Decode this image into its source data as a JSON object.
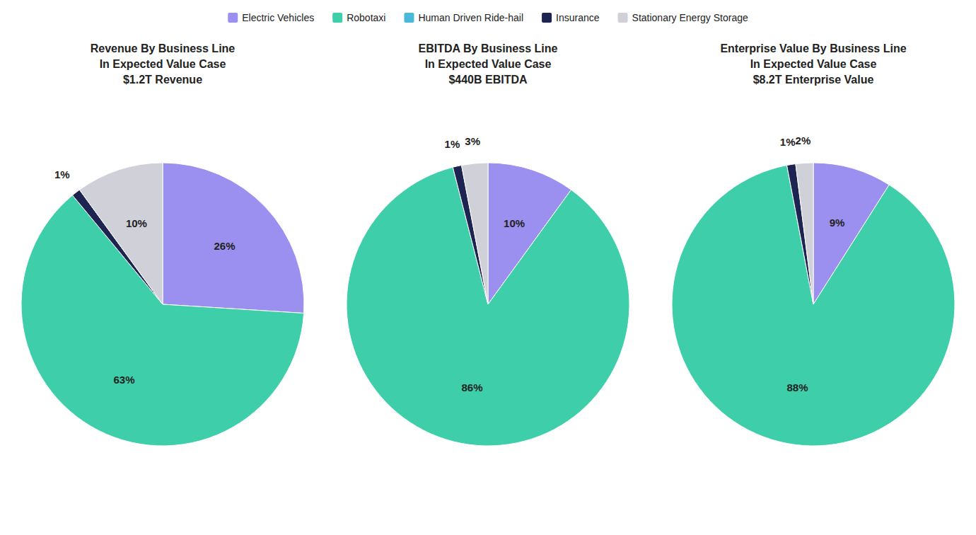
{
  "chart_data": [
    {
      "type": "pie",
      "title": "Revenue By Business Line\nIn Expected Value Case\n$1.2T Revenue",
      "categories": [
        "Electric Vehicles",
        "Robotaxi",
        "Human Driven Ride-hail",
        "Insurance",
        "Stationary Energy Storage"
      ],
      "values": [
        26,
        63,
        0,
        1,
        10
      ],
      "value_labels": [
        "26%",
        "63%",
        null,
        "1%",
        "10%"
      ],
      "colors": [
        "#9b8fef",
        "#3ecfaa",
        "#4ab8d8",
        "#1e2452",
        "#d0d0d8"
      ],
      "data_labels": true,
      "legend": "top"
    },
    {
      "type": "pie",
      "title": "EBITDA By Business Line\nIn Expected Value Case\n$440B EBITDA",
      "categories": [
        "Electric Vehicles",
        "Robotaxi",
        "Human Driven Ride-hail",
        "Insurance",
        "Stationary Energy Storage"
      ],
      "values": [
        10,
        86,
        0,
        1,
        3
      ],
      "value_labels": [
        "10%",
        "86%",
        null,
        "1%",
        "3%"
      ],
      "colors": [
        "#9b8fef",
        "#3ecfaa",
        "#4ab8d8",
        "#1e2452",
        "#d0d0d8"
      ],
      "data_labels": true
    },
    {
      "type": "pie",
      "title": "Enterprise Value By Business Line\nIn Expected Value Case\n$8.2T Enterprise Value",
      "categories": [
        "Electric Vehicles",
        "Robotaxi",
        "Human Driven Ride-hail",
        "Insurance",
        "Stationary Energy Storage"
      ],
      "values": [
        9,
        88,
        0,
        1,
        2
      ],
      "value_labels": [
        "9%",
        "88%",
        null,
        "1%",
        "2%"
      ],
      "colors": [
        "#9b8fef",
        "#3ecfaa",
        "#4ab8d8",
        "#1e2452",
        "#d0d0d8"
      ],
      "data_labels": true
    }
  ]
}
